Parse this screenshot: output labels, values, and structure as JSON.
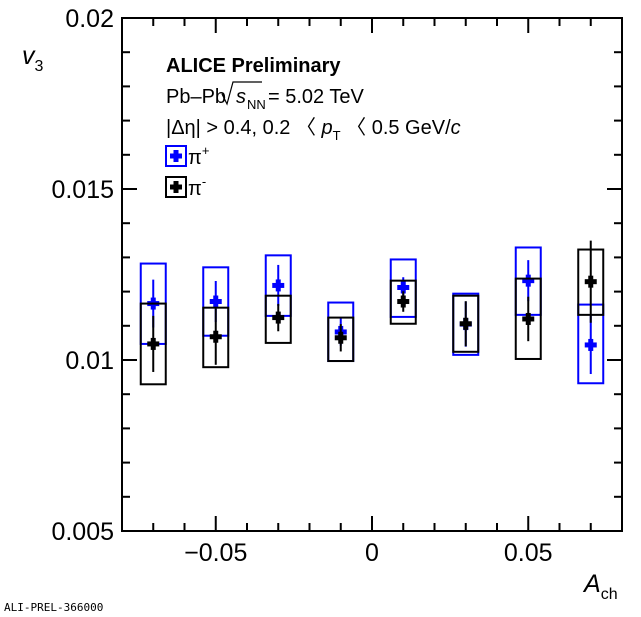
{
  "chart_data": {
    "type": "scatter",
    "title": "ALICE Preliminary",
    "annotations": [
      "Pb–Pb",
      "s",
      "NN",
      "= 5.02 TeV",
      "|Δη| > 0.4, 0.2 〈 ",
      "p",
      "T",
      " 〈 0.5 GeV/",
      "c"
    ],
    "xlabel": "A",
    "xlabel_sub": "ch",
    "ylabel": "v",
    "ylabel_sub": "3",
    "xlim": [
      -0.08,
      0.08
    ],
    "ylim": [
      0.005,
      0.02
    ],
    "xticks": [
      {
        "v": -0.05,
        "label": "−0.05"
      },
      {
        "v": 0,
        "label": "0"
      },
      {
        "v": 0.05,
        "label": "0.05"
      }
    ],
    "yticks": [
      {
        "v": 0.005,
        "label": "0.005"
      },
      {
        "v": 0.01,
        "label": "0.01"
      },
      {
        "v": 0.015,
        "label": "0.015"
      },
      {
        "v": 0.02,
        "label": "0.02"
      }
    ],
    "grid": false,
    "legend_placement": "top-left",
    "syst_box_halfwidth": 0.004,
    "series": [
      {
        "name": "π",
        "sup": "+",
        "color": "#0000ff",
        "points": [
          {
            "x": -0.07,
            "y": 0.01165,
            "stat": 0.0007,
            "syst_lo": 0.01047,
            "syst_hi": 0.01282
          },
          {
            "x": -0.05,
            "y": 0.01171,
            "stat": 0.0006,
            "syst_lo": 0.01071,
            "syst_hi": 0.01271
          },
          {
            "x": -0.03,
            "y": 0.01218,
            "stat": 0.0006,
            "syst_lo": 0.01129,
            "syst_hi": 0.01306
          },
          {
            "x": -0.01,
            "y": 0.01082,
            "stat": 0.0004,
            "syst_lo": 0.00997,
            "syst_hi": 0.01168
          },
          {
            "x": 0.01,
            "y": 0.01212,
            "stat": 0.0003,
            "syst_lo": 0.01126,
            "syst_hi": 0.01294
          },
          {
            "x": 0.03,
            "y": 0.01105,
            "stat": 0.00066,
            "syst_lo": 0.01015,
            "syst_hi": 0.01194
          },
          {
            "x": 0.05,
            "y": 0.01232,
            "stat": 0.0006,
            "syst_lo": 0.01132,
            "syst_hi": 0.01329
          },
          {
            "x": 0.07,
            "y": 0.01044,
            "stat": 0.00085,
            "syst_lo": 0.00932,
            "syst_hi": 0.01162
          }
        ]
      },
      {
        "name": "π",
        "sup": "-",
        "color": "#000000",
        "points": [
          {
            "x": -0.07,
            "y": 0.01047,
            "stat": 0.00082,
            "syst_lo": 0.00929,
            "syst_hi": 0.01165
          },
          {
            "x": -0.05,
            "y": 0.01068,
            "stat": 0.00082,
            "syst_lo": 0.00979,
            "syst_hi": 0.01153
          },
          {
            "x": -0.03,
            "y": 0.01124,
            "stat": 0.0004,
            "syst_lo": 0.0105,
            "syst_hi": 0.01188
          },
          {
            "x": -0.01,
            "y": 0.01065,
            "stat": 0.0004,
            "syst_lo": 0.00997,
            "syst_hi": 0.01124
          },
          {
            "x": 0.01,
            "y": 0.01171,
            "stat": 0.0003,
            "syst_lo": 0.01106,
            "syst_hi": 0.01232
          },
          {
            "x": 0.03,
            "y": 0.01106,
            "stat": 0.00066,
            "syst_lo": 0.01024,
            "syst_hi": 0.01188
          },
          {
            "x": 0.05,
            "y": 0.0112,
            "stat": 0.00065,
            "syst_lo": 0.01003,
            "syst_hi": 0.01238
          },
          {
            "x": 0.07,
            "y": 0.01229,
            "stat": 0.0012,
            "syst_lo": 0.01132,
            "syst_hi": 0.01323
          }
        ]
      }
    ]
  },
  "footer_id": "ALI-PREL-366000"
}
